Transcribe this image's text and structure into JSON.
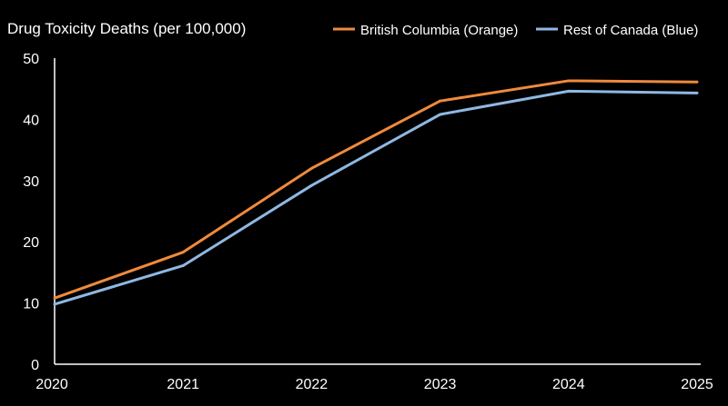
{
  "chart_data": {
    "type": "line",
    "title": "Drug Toxicity Deaths (per 100,000)",
    "xlabel": "",
    "ylabel": "",
    "x": [
      2020,
      2021,
      2022,
      2023,
      2024,
      2025
    ],
    "x_tick_labels": [
      "2020",
      "2021",
      "2022",
      "2023",
      "2024",
      "2025"
    ],
    "ylim": [
      0,
      50
    ],
    "y_ticks": [
      0,
      10,
      20,
      30,
      40,
      50
    ],
    "y_tick_labels": [
      "0",
      "10",
      "20",
      "30",
      "40",
      "50"
    ],
    "grid": false,
    "legend_position": "top-right",
    "series": [
      {
        "name": "British Columbia (Orange)",
        "color": "#F08A3C",
        "values": [
          10.8,
          18.3,
          32.0,
          43.0,
          46.3,
          46.1
        ]
      },
      {
        "name": "Rest of Canada (Blue)",
        "color": "#8FB8E3",
        "values": [
          9.8,
          16.1,
          29.2,
          40.8,
          44.6,
          44.3
        ]
      }
    ]
  }
}
